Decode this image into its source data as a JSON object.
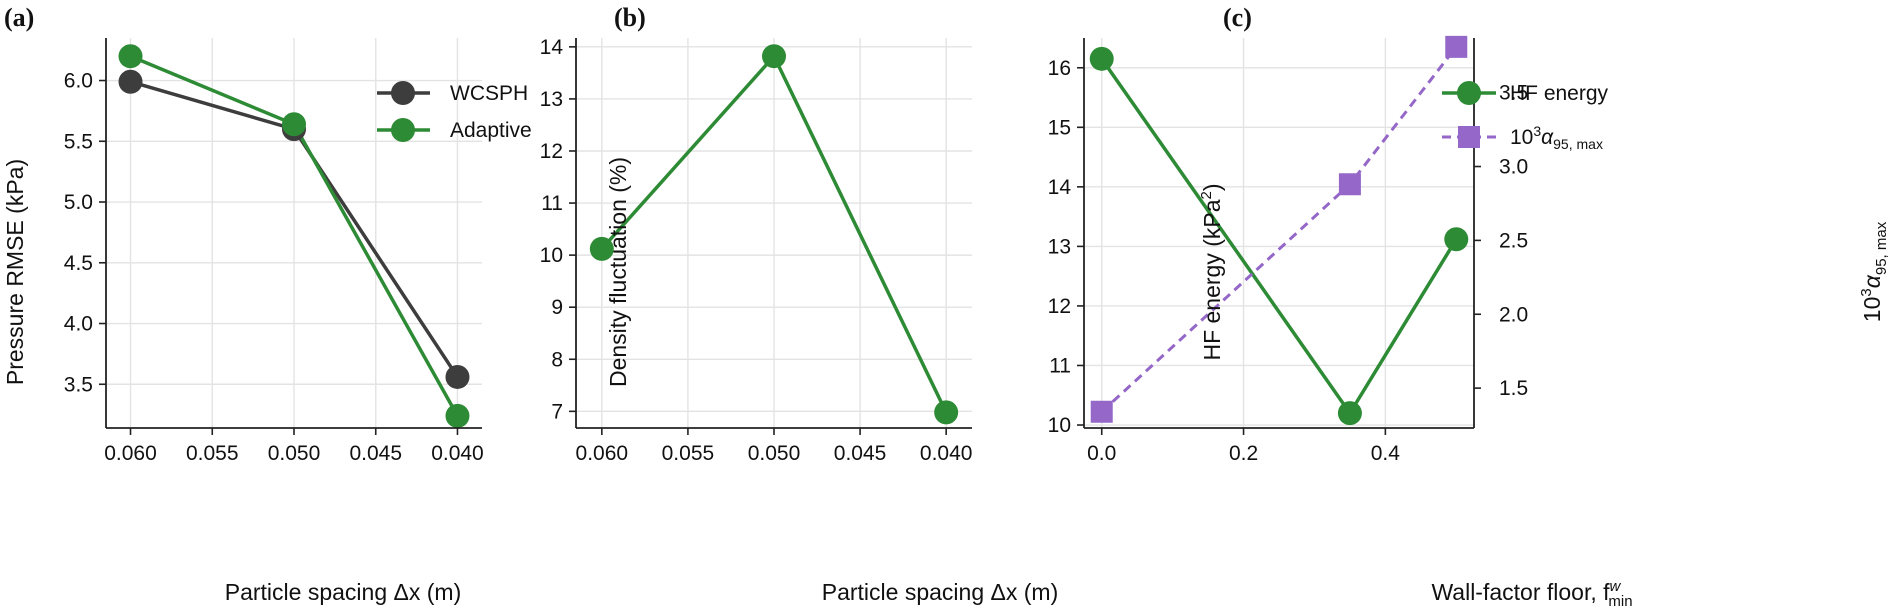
{
  "chart_data": [
    {
      "type": "line",
      "panel_label": "(a)",
      "xlabel": "Particle spacing Δx (m)",
      "ylabel": "Pressure RMSE (kPa)",
      "x": [
        0.06,
        0.05,
        0.04
      ],
      "xlim": [
        0.0615,
        0.0385
      ],
      "x_reversed": true,
      "ylim": [
        3.14,
        6.35
      ],
      "xticks": [
        "0.060",
        "0.055",
        "0.050",
        "0.045",
        "0.040"
      ],
      "xtick_values": [
        0.06,
        0.055,
        0.05,
        0.045,
        0.04
      ],
      "yticks": [
        "3.5",
        "4.0",
        "4.5",
        "5.0",
        "5.5",
        "6.0"
      ],
      "ytick_values": [
        3.5,
        4.0,
        4.5,
        5.0,
        5.5,
        6.0
      ],
      "grid": true,
      "legend_position": "top-right",
      "series": [
        {
          "name": "WCSPH",
          "values": [
            5.99,
            5.6,
            3.56
          ],
          "color": "#3d3d3d",
          "marker": "circle",
          "linestyle": "solid"
        },
        {
          "name": "Adaptive",
          "values": [
            6.2,
            5.64,
            3.24
          ],
          "color": "#2e8b35",
          "marker": "circle",
          "linestyle": "solid"
        }
      ]
    },
    {
      "type": "line",
      "panel_label": "(b)",
      "xlabel": "Particle spacing Δx (m)",
      "ylabel": "Density fluctuation (%)",
      "x": [
        0.06,
        0.05,
        0.04
      ],
      "xlim": [
        0.0615,
        0.0385
      ],
      "x_reversed": true,
      "ylim": [
        6.68,
        14.17
      ],
      "xticks": [
        "0.060",
        "0.055",
        "0.050",
        "0.045",
        "0.040"
      ],
      "xtick_values": [
        0.06,
        0.055,
        0.05,
        0.045,
        0.04
      ],
      "yticks": [
        "7",
        "8",
        "9",
        "10",
        "11",
        "12",
        "13",
        "14"
      ],
      "ytick_values": [
        7,
        8,
        9,
        10,
        11,
        12,
        13,
        14
      ],
      "grid": true,
      "series": [
        {
          "values": [
            10.12,
            13.82,
            6.98
          ],
          "color": "#2e8b35",
          "marker": "circle",
          "linestyle": "solid"
        }
      ]
    },
    {
      "type": "line",
      "panel_label": "(c)",
      "xlabel": "Wall-factor floor, f",
      "xlabel_sup": "w",
      "xlabel_sub": "min",
      "ylabel": "HF energy (kPa",
      "ylabel_sup": "2",
      "ylabel_end": ")",
      "ylabel_right": "10",
      "ylabel_right_sup": "3",
      "ylabel_right_symbol": "α",
      "ylabel_right_sub": "95, max",
      "x": [
        0.0,
        0.35,
        0.5
      ],
      "xlim": [
        -0.025,
        0.525
      ],
      "xticks": [
        "0.0",
        "0.2",
        "0.4"
      ],
      "xtick_values": [
        0.0,
        0.2,
        0.4
      ],
      "ylim": [
        9.95,
        16.5
      ],
      "yticks": [
        "10",
        "11",
        "12",
        "13",
        "14",
        "15",
        "16"
      ],
      "ytick_values": [
        10,
        11,
        12,
        13,
        14,
        15,
        16
      ],
      "ylim_right": [
        1.23,
        3.87
      ],
      "yticks_right": [
        "1.5",
        "2.0",
        "2.5",
        "3.0",
        "3.5"
      ],
      "ytick_values_right": [
        1.5,
        2.0,
        2.5,
        3.0,
        3.5
      ],
      "grid": true,
      "legend_position": "top-center",
      "series": [
        {
          "name": "HF energy",
          "values": [
            16.15,
            10.2,
            13.12
          ],
          "axis": "left",
          "color": "#2e8b35",
          "marker": "circle",
          "linestyle": "solid"
        },
        {
          "name_prefix": "10",
          "name_sup": "3",
          "name_symbol": "α",
          "name_sub": "95, max",
          "values": [
            1.34,
            2.88,
            3.81
          ],
          "axis": "right",
          "color": "#9467c8",
          "marker": "square",
          "linestyle": "dashed"
        }
      ]
    }
  ]
}
